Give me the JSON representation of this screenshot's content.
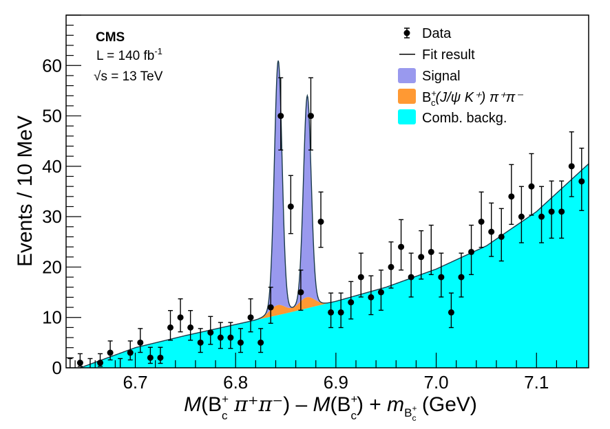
{
  "chart_data": {
    "type": "scatter",
    "title": "",
    "xlabel": "M(B_c^+ π^+π^-) − M(B_c^+) + m_{B_c^+} (GeV)",
    "xlabel_parts": {
      "M1": "M",
      "open1": "(B",
      "sup1": "+",
      "sub1": "c",
      "pipi": " π⁺π⁻",
      "close1": ") – ",
      "M2": "M",
      "open2": "(B",
      "sup2": "+",
      "sub2": "c",
      "close2": ") + ",
      "m": "m",
      "msub": "B",
      "msubsup": "+",
      "msubsub": "c",
      "unit": " (GeV)"
    },
    "ylabel": "Events / 10 MeV",
    "xlim": [
      6.631,
      7.152
    ],
    "ylim": [
      0,
      70
    ],
    "x_ticks": [
      6.7,
      6.8,
      6.9,
      7.0,
      7.1
    ],
    "x_tick_labels": [
      "6.7",
      "6.8",
      "6.9",
      "7.0",
      "7.1"
    ],
    "y_ticks": [
      0,
      10,
      20,
      30,
      40,
      50,
      60
    ],
    "y_tick_labels": [
      "0",
      "10",
      "20",
      "30",
      "40",
      "50",
      "60"
    ],
    "grid": false,
    "legend_position": "top-right",
    "annotations": {
      "experiment": "CMS",
      "lumi_prefix": "L = 140 fb",
      "lumi_sup": "-1",
      "energy_root": "√",
      "energy": "s = 13 TeV"
    },
    "legend": [
      {
        "label": "Data",
        "kind": "marker",
        "color": "#000000"
      },
      {
        "label": "Fit result",
        "kind": "line",
        "color": "#000000"
      },
      {
        "label": "Signal",
        "kind": "fill",
        "color": "#9999ee"
      },
      {
        "label_main": "B",
        "label_sup": "+",
        "label_sub": "c",
        "label_rest": "(J/ψ K⁺) π⁺π⁻",
        "label": "B_c^+(J/ψ K^+) π^+π^-",
        "kind": "fill",
        "color": "#ff9933"
      },
      {
        "label": "Comb. backg.",
        "kind": "fill",
        "color": "#00ffff"
      }
    ],
    "series": [
      {
        "name": "Data",
        "x": [
          6.645,
          6.665,
          6.675,
          6.695,
          6.705,
          6.715,
          6.725,
          6.735,
          6.745,
          6.755,
          6.765,
          6.775,
          6.785,
          6.795,
          6.805,
          6.815,
          6.825,
          6.835,
          6.845,
          6.855,
          6.865,
          6.875,
          6.885,
          6.895,
          6.905,
          6.915,
          6.925,
          6.935,
          6.945,
          6.955,
          6.965,
          6.975,
          6.985,
          6.995,
          7.005,
          7.015,
          7.025,
          7.035,
          7.045,
          7.055,
          7.065,
          7.075,
          7.085,
          7.095,
          7.105,
          7.115,
          7.125,
          7.135,
          7.145,
          6.635,
          6.655,
          6.685
        ],
        "y": [
          1,
          1,
          3,
          3,
          5,
          2,
          2,
          8,
          10,
          8,
          5,
          7,
          6,
          6,
          5,
          10,
          5,
          12,
          50,
          32,
          15,
          50,
          29,
          11,
          11,
          13,
          18,
          14,
          15,
          20,
          24,
          18,
          22,
          23,
          18,
          11,
          18,
          23,
          29,
          27,
          26,
          34,
          30,
          36,
          30,
          31,
          31,
          40,
          37,
          0,
          0,
          0
        ]
      },
      {
        "name": "Comb. backg.",
        "model": "exponential-like rising background",
        "x": [
          6.645,
          6.7,
          6.75,
          6.8,
          6.85,
          6.9,
          6.95,
          7.0,
          7.05,
          7.1,
          7.152
        ],
        "y": [
          0,
          4.0,
          6.4,
          8.6,
          10.8,
          13.2,
          16.0,
          19.6,
          24.2,
          31.0,
          40.5
        ]
      },
      {
        "name": "Signal",
        "peaks": [
          {
            "mean": 6.8425,
            "sigma": 0.0038,
            "height": 48.5
          },
          {
            "mean": 6.8715,
            "sigma": 0.0038,
            "height": 40.0
          }
        ]
      },
      {
        "name": "B_c^+(J/ψ K^+) π^+π^-",
        "peaks": [
          {
            "mean": 6.842,
            "sigma": 0.008,
            "height": 2.0
          },
          {
            "mean": 6.871,
            "sigma": 0.008,
            "height": 2.2
          }
        ]
      }
    ]
  }
}
